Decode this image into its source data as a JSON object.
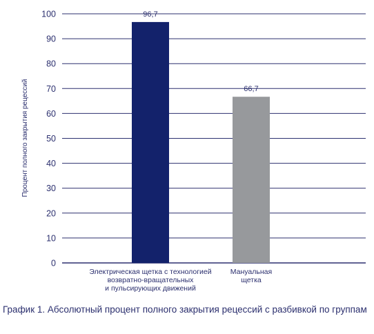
{
  "chart_data": {
    "type": "bar",
    "categories": [
      [
        "Электрическая щетка с технологией",
        "возвратно-вращательных",
        "и пульсирующих движений"
      ],
      [
        "Мануальная",
        "щетка"
      ]
    ],
    "values": [
      96.7,
      66.7
    ],
    "value_labels": [
      "96,7",
      "66,7"
    ],
    "bar_colors": [
      "#13226b",
      "#97999c"
    ],
    "ylabel": "Процент полного закрытия рецессий",
    "xlabel": "",
    "ylim": [
      0,
      100
    ],
    "yticks": [
      0,
      10,
      20,
      30,
      40,
      50,
      60,
      70,
      80,
      90,
      100
    ],
    "grid": true,
    "grid_color": "#2b2f6e",
    "text_color": "#2b2f6e"
  },
  "caption": "График 1. Абсолютный процент полного закрытия рецессий с разбивкой по группам"
}
